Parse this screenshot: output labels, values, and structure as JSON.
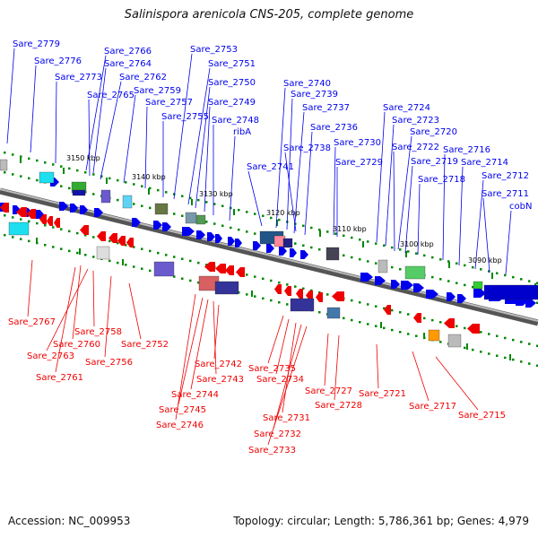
{
  "header": {
    "title": "Salinispora arenicola CNS-205, complete genome"
  },
  "footer": {
    "accession": "Accession: NC_009953",
    "summary": "Topology: circular; Length: 5,786,361 bp; Genes: 4,979"
  },
  "colors": {
    "forward_strand": "#0000ee",
    "reverse_strand": "#ee0000",
    "backbone": "#777777",
    "tick": "#008800"
  },
  "scale_labels": [
    "3150 kbp",
    "3140 kbp",
    "3130 kbp",
    "3120 kbp",
    "3110 kbp",
    "3100 kbp",
    "3090 kbp"
  ],
  "forward_genes": [
    "Sare_2779",
    "Sare_2776",
    "Sare_2773",
    "Sare_2766",
    "Sare_2764",
    "Sare_2765",
    "Sare_2762",
    "Sare_2759",
    "Sare_2757",
    "Sare_2755",
    "Sare_2753",
    "Sare_2751",
    "Sare_2750",
    "Sare_2749",
    "Sare_2748",
    "ribA",
    "Sare_2741",
    "Sare_2740",
    "Sare_2739",
    "Sare_2737",
    "Sare_2736",
    "Sare_2738",
    "Sare_2730",
    "Sare_2729",
    "Sare_2724",
    "Sare_2723",
    "Sare_2720",
    "Sare_2722",
    "Sare_2719",
    "Sare_2718",
    "Sare_2716",
    "Sare_2714",
    "Sare_2712",
    "Sare_2711",
    "cobN"
  ],
  "reverse_genes": [
    "Sare_2767",
    "Sare_2760",
    "Sare_2758",
    "Sare_2763",
    "Sare_2761",
    "Sare_2756",
    "Sare_2752",
    "Sare_2742",
    "Sare_2743",
    "Sare_2744",
    "Sare_2745",
    "Sare_2746",
    "Sare_2735",
    "Sare_2734",
    "Sare_2731",
    "Sare_2732",
    "Sare_2733",
    "Sare_2727",
    "Sare_2728",
    "Sare_2721",
    "Sare_2717",
    "Sare_2715"
  ]
}
